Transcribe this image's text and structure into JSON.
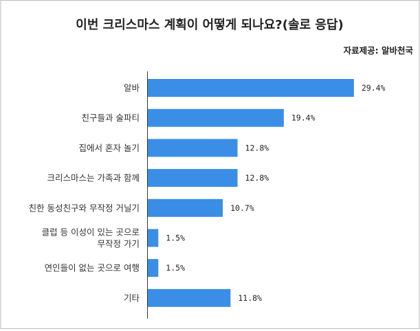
{
  "chart_data": {
    "type": "bar",
    "orientation": "horizontal",
    "title": "이번 크리스마스 계획이 어떻게 되나요?(솔로 응답)",
    "source": "자료제공: 알바천국",
    "categories": [
      [
        "알바"
      ],
      [
        "친구들과 술파티"
      ],
      [
        "집에서 혼자 놀기"
      ],
      [
        "크리스마스는 가족과 함께"
      ],
      [
        "친한 동성친구와 무작정 거닐기"
      ],
      [
        "클럽 등 이성이 있는 곳으로",
        "무작정 가기"
      ],
      [
        "연인들이 없는 곳으로 여행"
      ],
      [
        "기타"
      ]
    ],
    "values": [
      29.4,
      19.4,
      12.8,
      12.8,
      10.7,
      1.5,
      1.5,
      11.8
    ],
    "value_labels": [
      "29.4%",
      "19.4%",
      "12.8%",
      "12.8%",
      "10.7%",
      "1.5%",
      "1.5%",
      "11.8%"
    ],
    "xlim": [
      0,
      30
    ],
    "grid": false,
    "bar_color": "#3a8ee6",
    "frame_color": "#bbbbbb",
    "axis_color": "#333333"
  }
}
